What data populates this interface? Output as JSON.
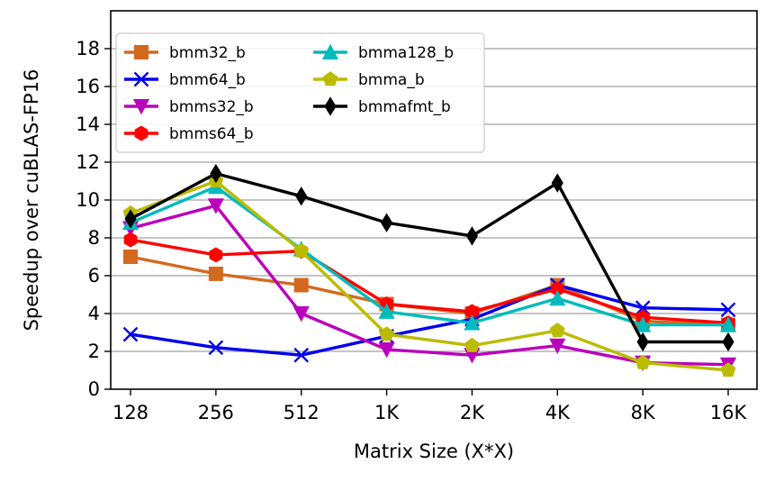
{
  "chart_data": {
    "type": "line",
    "title": "",
    "xlabel": "Matrix Size (X*X)",
    "ylabel": "Speedup over cuBLAS-FP16",
    "categories": [
      "128",
      "256",
      "512",
      "1K",
      "2K",
      "4K",
      "8K",
      "16K"
    ],
    "ylim": [
      0,
      20
    ],
    "yticks": [
      0,
      2,
      4,
      6,
      8,
      10,
      12,
      14,
      16,
      18
    ],
    "grid": "horizontal",
    "legend_position": "top-left",
    "series": [
      {
        "name": "bmm32_b",
        "color": "#d2691e",
        "marker": "square",
        "values": [
          7.0,
          6.1,
          5.5,
          4.5,
          4.0,
          5.5,
          3.6,
          3.4
        ]
      },
      {
        "name": "bmm64_b",
        "color": "#0000ee",
        "marker": "x",
        "values": [
          2.9,
          2.2,
          1.8,
          2.8,
          3.7,
          5.5,
          4.3,
          4.2
        ]
      },
      {
        "name": "bmms32_b",
        "color": "#bb00bb",
        "marker": "triangle-down",
        "values": [
          8.5,
          9.7,
          4.0,
          2.1,
          1.8,
          2.3,
          1.4,
          1.3
        ]
      },
      {
        "name": "bmms64_b",
        "color": "#ff0000",
        "marker": "hexagon",
        "values": [
          7.9,
          7.1,
          7.3,
          4.5,
          4.1,
          5.3,
          3.8,
          3.5
        ]
      },
      {
        "name": "bmma128_b",
        "color": "#00bbbb",
        "marker": "triangle-up",
        "values": [
          8.8,
          10.7,
          7.4,
          4.1,
          3.5,
          4.8,
          3.4,
          3.4
        ]
      },
      {
        "name": "bmma_b",
        "color": "#bbbb00",
        "marker": "pentagon",
        "values": [
          9.3,
          11.0,
          7.3,
          2.9,
          2.3,
          3.1,
          1.4,
          1.0
        ]
      },
      {
        "name": "bmmafmt_b",
        "color": "#000000",
        "marker": "diamond",
        "values": [
          9.0,
          11.4,
          10.2,
          8.8,
          8.1,
          10.9,
          2.5,
          2.5
        ]
      }
    ]
  }
}
